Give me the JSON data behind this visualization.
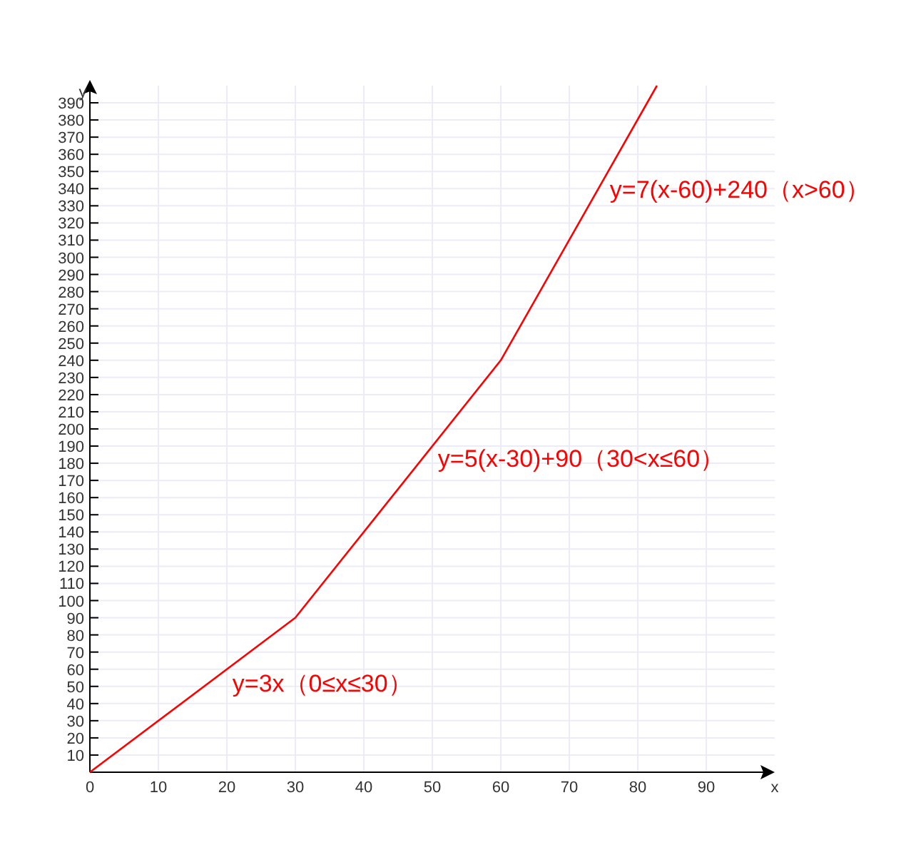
{
  "chart_data": {
    "type": "line",
    "xlabel": "x",
    "ylabel": "y",
    "x": [
      0,
      30,
      60,
      82.8
    ],
    "series": [
      {
        "color": "#ff0000",
        "values": [
          0,
          90,
          240,
          400
        ]
      }
    ],
    "xlim": [
      0,
      100
    ],
    "ylim": [
      0,
      400
    ],
    "xticks": [
      0,
      10,
      20,
      30,
      40,
      50,
      60,
      70,
      80,
      90
    ],
    "yticks": [
      10,
      20,
      30,
      40,
      50,
      60,
      70,
      80,
      90,
      100,
      110,
      120,
      130,
      140,
      150,
      160,
      170,
      180,
      190,
      200,
      210,
      220,
      230,
      240,
      250,
      260,
      270,
      280,
      290,
      300,
      310,
      320,
      330,
      340,
      350,
      360,
      370,
      380,
      390
    ],
    "grid": true,
    "marker": "none",
    "line_style": "solid",
    "annotations": [
      "y=3x（0≤x≤30）",
      "y=5(x-30)+90（30<x≤60）",
      "y=7(x-60)+240（x>60）"
    ]
  }
}
